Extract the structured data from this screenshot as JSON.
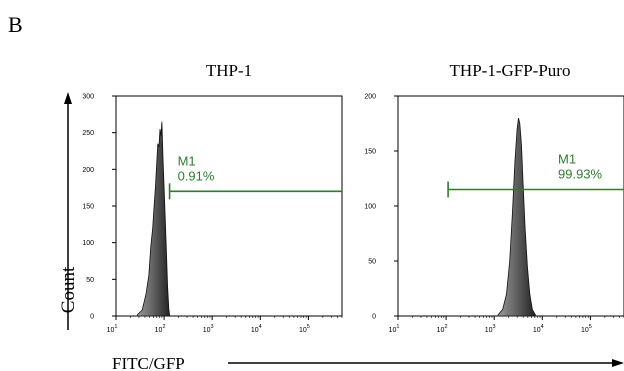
{
  "panel_letter": "B",
  "shared_axes": {
    "ylabel": "Count",
    "xlabel": "FITC/GFP"
  },
  "chart_data": [
    {
      "type": "area",
      "title": "THP-1",
      "xscale": "log",
      "xlim": [
        10,
        500000
      ],
      "ylim": [
        0,
        300
      ],
      "yticks": [
        0,
        50,
        100,
        150,
        200,
        250,
        300
      ],
      "xticks": [
        {
          "base": "10",
          "exp": "1"
        },
        {
          "base": "10",
          "exp": "2"
        },
        {
          "base": "10",
          "exp": "3"
        },
        {
          "base": "10",
          "exp": "4"
        },
        {
          "base": "10",
          "exp": "5"
        }
      ],
      "histogram": {
        "x": [
          28,
          35,
          42,
          48,
          53,
          58,
          62,
          66,
          70,
          74,
          78,
          82,
          86,
          90,
          95,
          102,
          110,
          118,
          125,
          130
        ],
        "y": [
          2,
          8,
          30,
          55,
          95,
          120,
          150,
          175,
          205,
          235,
          230,
          255,
          245,
          265,
          215,
          160,
          100,
          40,
          10,
          1
        ]
      },
      "marker": {
        "name": "M1",
        "percent": "0.91%",
        "x_start": 130,
        "x_end": 500000,
        "y": 170
      },
      "colors": {
        "fill": "#5a5a5a",
        "marker": "#2e7d2e"
      }
    },
    {
      "type": "area",
      "title": "THP-1-GFP-Puro",
      "xscale": "log",
      "xlim": [
        10,
        500000
      ],
      "ylim": [
        0,
        200
      ],
      "yticks": [
        0,
        50,
        100,
        150,
        200
      ],
      "xticks": [
        {
          "base": "10",
          "exp": "1"
        },
        {
          "base": "10",
          "exp": "2"
        },
        {
          "base": "10",
          "exp": "3"
        },
        {
          "base": "10",
          "exp": "4"
        },
        {
          "base": "10",
          "exp": "5"
        }
      ],
      "histogram": {
        "x": [
          1200,
          1500,
          1800,
          2100,
          2400,
          2700,
          3000,
          3200,
          3400,
          3700,
          4000,
          4400,
          4900,
          5500,
          6200,
          7200
        ],
        "y": [
          1,
          6,
          20,
          50,
          95,
          140,
          170,
          180,
          175,
          155,
          120,
          80,
          45,
          20,
          6,
          1
        ]
      },
      "marker": {
        "name": "M1",
        "percent": "99.93%",
        "x_start": 110,
        "x_end": 500000,
        "y": 115
      },
      "colors": {
        "fill": "#5a5a5a",
        "marker": "#2e7d2e"
      }
    }
  ]
}
